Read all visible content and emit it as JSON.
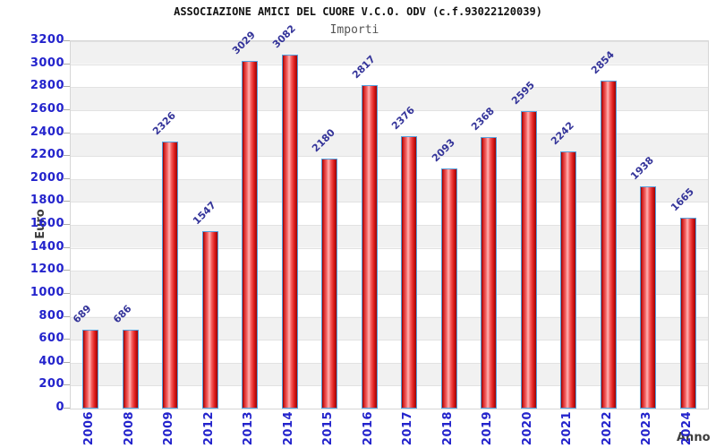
{
  "header": {
    "title": "ASSOCIAZIONE AMICI DEL CUORE V.C.O. ODV (c.f.93022120039)",
    "subtitle": "Importi"
  },
  "axes": {
    "y_label": "Euro",
    "x_label": "Anno"
  },
  "chart_data": {
    "type": "bar",
    "title": "ASSOCIAZIONE AMICI DEL CUORE V.C.O. ODV (c.f.93022120039)",
    "subtitle": "Importi",
    "xlabel": "Anno",
    "ylabel": "Euro",
    "categories": [
      "2006",
      "2008",
      "2009",
      "2012",
      "2013",
      "2014",
      "2015",
      "2016",
      "2017",
      "2018",
      "2019",
      "2020",
      "2021",
      "2022",
      "2023",
      "2024"
    ],
    "values": [
      689,
      686,
      2326,
      1547,
      3029,
      3082,
      2180,
      2817,
      2376,
      2093,
      2368,
      2595,
      2242,
      2854,
      1938,
      1665
    ],
    "ylim": [
      0,
      3200
    ],
    "ytick_step": 200,
    "grid": true,
    "legend": "none",
    "colors": {
      "bar_fill": "#e02020",
      "bar_border": "#55a0dd",
      "tick_label": "#2323cc",
      "value_label": "#333399",
      "axis_title": "#3d3d3d",
      "band_light": "#ffffff",
      "band_dark": "#f1f1f1",
      "gridline": "#e2e2e2"
    }
  }
}
